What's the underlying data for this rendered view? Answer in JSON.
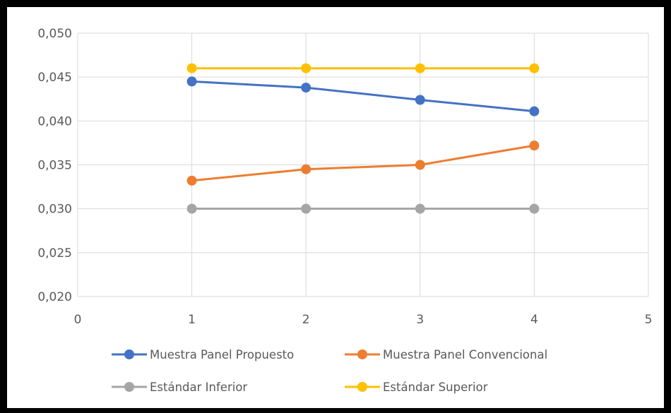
{
  "chart_data": {
    "type": "line",
    "title": "",
    "xlabel": "",
    "ylabel": "",
    "x": [
      1,
      2,
      3,
      4
    ],
    "xlim": [
      0,
      5
    ],
    "ylim": [
      0.02,
      0.05
    ],
    "x_ticks": [
      0,
      1,
      2,
      3,
      4,
      5
    ],
    "x_tick_labels": [
      "0",
      "1",
      "2",
      "3",
      "4",
      "5"
    ],
    "y_ticks": [
      0.02,
      0.025,
      0.03,
      0.035,
      0.04,
      0.045,
      0.05
    ],
    "y_tick_labels": [
      "0,020",
      "0,025",
      "0,030",
      "0,035",
      "0,040",
      "0,045",
      "0,050"
    ],
    "grid": true,
    "legend_position": "bottom",
    "series": [
      {
        "name": "Muestra Panel Propuesto",
        "color": "#4472C4",
        "values": [
          0.0445,
          0.0438,
          0.0424,
          0.0411
        ]
      },
      {
        "name": "Muestra Panel Convencional",
        "color": "#ED7D31",
        "values": [
          0.0332,
          0.0345,
          0.035,
          0.0372
        ]
      },
      {
        "name": "Estándar Inferior",
        "color": "#A5A5A5",
        "values": [
          0.03,
          0.03,
          0.03,
          0.03
        ]
      },
      {
        "name": "Estándar Superior",
        "color": "#FFC000",
        "values": [
          0.046,
          0.046,
          0.046,
          0.046
        ]
      }
    ]
  }
}
